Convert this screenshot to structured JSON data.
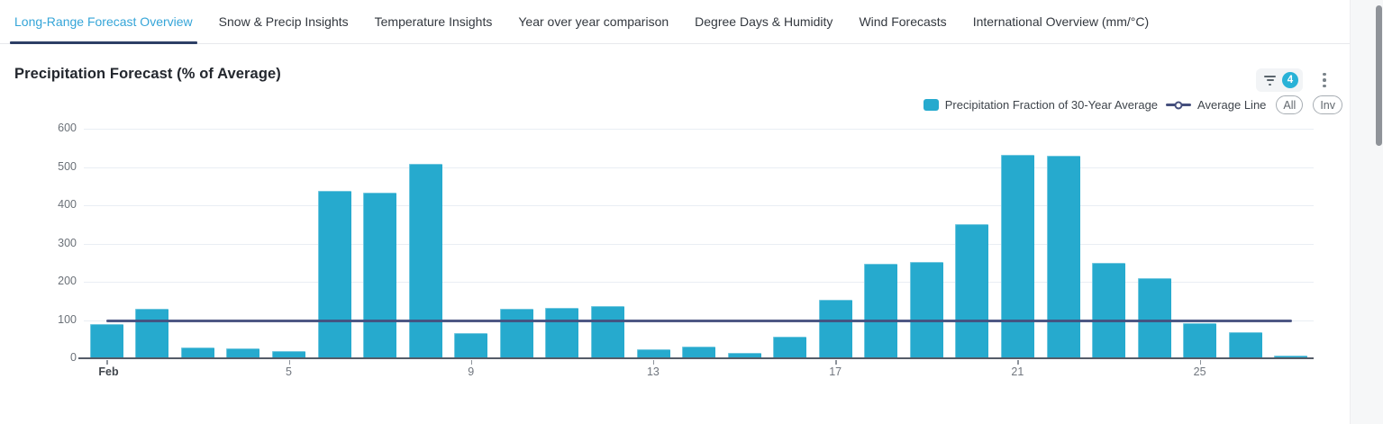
{
  "tabs": {
    "items": [
      {
        "label": "Long-Range Forecast Overview",
        "active": true
      },
      {
        "label": "Snow & Precip Insights",
        "active": false
      },
      {
        "label": "Temperature Insights",
        "active": false
      },
      {
        "label": "Year over year comparison",
        "active": false
      },
      {
        "label": "Degree Days & Humidity",
        "active": false
      },
      {
        "label": "Wind Forecasts",
        "active": false
      },
      {
        "label": "International Overview (mm/°C)",
        "active": false
      }
    ]
  },
  "header": {
    "title": "Precipitation Forecast (% of Average)",
    "filter_badge_count": "4"
  },
  "legend": {
    "series_label": "Precipitation Fraction of 30-Year Average",
    "line_label": "Average Line",
    "all_button": "All",
    "inv_button": "Inv"
  },
  "chart_data": {
    "type": "bar",
    "title": "Precipitation Forecast (% of Average)",
    "series": [
      {
        "name": "Precipitation Fraction of 30-Year Average",
        "values": [
          90,
          130,
          28,
          25,
          20,
          438,
          432,
          508,
          65,
          130,
          131,
          136,
          24,
          31,
          15,
          57,
          153,
          247,
          252,
          350,
          532,
          529,
          250,
          210,
          92,
          68,
          6
        ]
      }
    ],
    "categories": [
      "Feb 1",
      "Feb 2",
      "Feb 3",
      "Feb 4",
      "Feb 5",
      "Feb 6",
      "Feb 7",
      "Feb 8",
      "Feb 9",
      "Feb 10",
      "Feb 11",
      "Feb 12",
      "Feb 13",
      "Feb 14",
      "Feb 15",
      "Feb 16",
      "Feb 17",
      "Feb 18",
      "Feb 19",
      "Feb 20",
      "Feb 21",
      "Feb 22",
      "Feb 23",
      "Feb 24",
      "Feb 25",
      "Feb 26",
      "Feb 27"
    ],
    "average_line": {
      "label": "Average Line",
      "value": 100
    },
    "ylim": [
      0,
      600
    ],
    "yticks": [
      0,
      100,
      200,
      300,
      400,
      500,
      600
    ],
    "xticks": [
      {
        "index": 0,
        "label": "Feb"
      },
      {
        "index": 4,
        "label": "5"
      },
      {
        "index": 8,
        "label": "9"
      },
      {
        "index": 12,
        "label": "13"
      },
      {
        "index": 16,
        "label": "17"
      },
      {
        "index": 20,
        "label": "21"
      },
      {
        "index": 24,
        "label": "25"
      }
    ],
    "grid": true,
    "legend_position": "top-right",
    "colors": {
      "bar": "#26aace",
      "average_line": "#454f7d",
      "badge": "#29b2d7",
      "active_tab": "#35a5d8",
      "active_tab_underline": "#2d3f66"
    }
  }
}
